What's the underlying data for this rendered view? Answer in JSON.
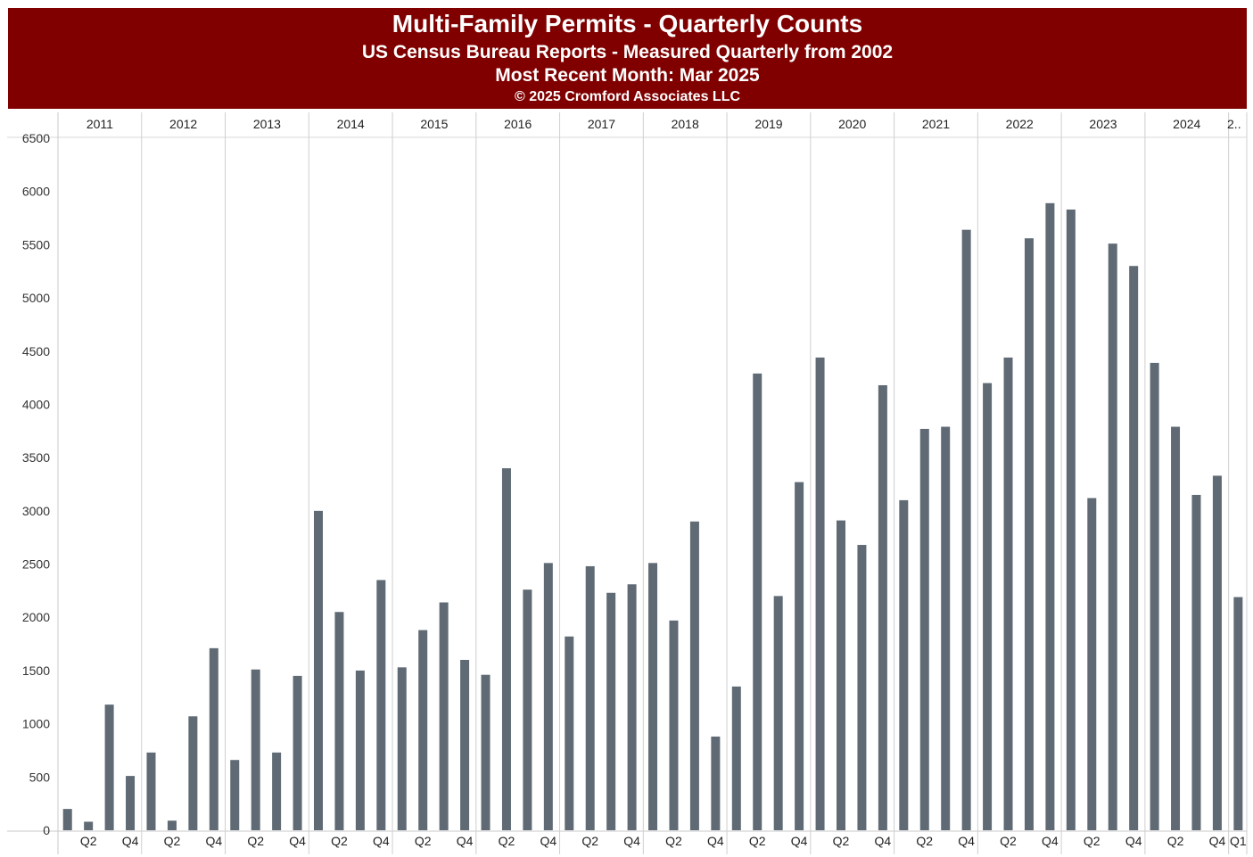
{
  "header": {
    "title": "Multi-Family Permits - Quarterly Counts",
    "subtitle": "US Census Bureau Reports - Measured Quarterly from 2002",
    "recent": "Most Recent Month: Mar 2025",
    "copyright": "© 2025 Cromford Associates LLC",
    "background_color": "#800000",
    "text_color": "#ffffff"
  },
  "chart_data": {
    "type": "bar",
    "title": "Multi-Family Permits - Quarterly Counts",
    "xlabel": "",
    "ylabel": "",
    "ylim": [
      0,
      6500
    ],
    "y_ticks": [
      0,
      500,
      1000,
      1500,
      2000,
      2500,
      3000,
      3500,
      4000,
      4500,
      5000,
      5500,
      6000,
      6500
    ],
    "grid": "vertical year separators",
    "bar_color": "#5f6a74",
    "years": [
      {
        "label": "2011",
        "values": [
          200,
          80,
          1180,
          510
        ]
      },
      {
        "label": "2012",
        "values": [
          730,
          90,
          1070,
          1710
        ]
      },
      {
        "label": "2013",
        "values": [
          660,
          1510,
          730,
          1450
        ]
      },
      {
        "label": "2014",
        "values": [
          3000,
          2050,
          1500,
          2350
        ]
      },
      {
        "label": "2015",
        "values": [
          1530,
          1880,
          2140,
          1600
        ]
      },
      {
        "label": "2016",
        "values": [
          1460,
          3400,
          2260,
          2510
        ]
      },
      {
        "label": "2017",
        "values": [
          1820,
          2480,
          2230,
          2310
        ]
      },
      {
        "label": "2018",
        "values": [
          2510,
          1970,
          2900,
          880
        ]
      },
      {
        "label": "2019",
        "values": [
          1350,
          4290,
          2200,
          3270
        ]
      },
      {
        "label": "2020",
        "values": [
          4440,
          2910,
          2680,
          4180
        ]
      },
      {
        "label": "2021",
        "values": [
          3100,
          3770,
          3790,
          5640
        ]
      },
      {
        "label": "2022",
        "values": [
          4200,
          4440,
          5560,
          5890
        ]
      },
      {
        "label": "2023",
        "values": [
          5830,
          3120,
          5510,
          5300
        ]
      },
      {
        "label": "2024",
        "values": [
          4390,
          3790,
          3150,
          3330
        ]
      },
      {
        "label": "2..",
        "values": [
          2190
        ]
      }
    ],
    "quarter_tick_labels": [
      "",
      "Q2",
      "",
      "Q4"
    ],
    "last_quarter_label": "Q1"
  }
}
